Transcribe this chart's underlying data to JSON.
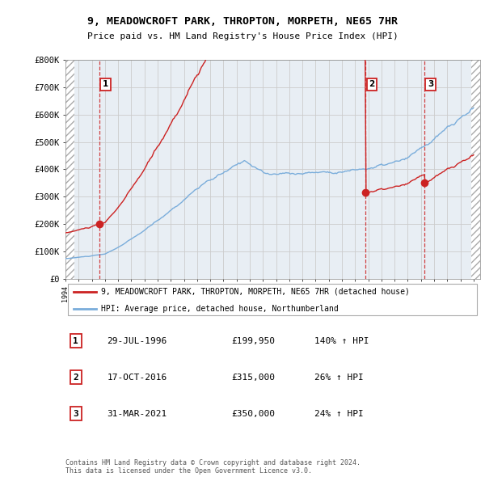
{
  "title_line1": "9, MEADOWCROFT PARK, THROPTON, MORPETH, NE65 7HR",
  "title_line2": "Price paid vs. HM Land Registry's House Price Index (HPI)",
  "ylim": [
    0,
    800000
  ],
  "yticks": [
    0,
    100000,
    200000,
    300000,
    400000,
    500000,
    600000,
    700000,
    800000
  ],
  "ytick_labels": [
    "£0",
    "£100K",
    "£200K",
    "£300K",
    "£400K",
    "£500K",
    "£600K",
    "£700K",
    "£800K"
  ],
  "hpi_color": "#7aaddb",
  "price_color": "#cc2222",
  "vline_color": "#cc2222",
  "purchases": [
    {
      "year_float": 1996.57,
      "price": 199950,
      "label": "1"
    },
    {
      "year_float": 2016.79,
      "price": 315000,
      "label": "2"
    },
    {
      "year_float": 2021.25,
      "price": 350000,
      "label": "3"
    }
  ],
  "legend_entries": [
    {
      "label": "9, MEADOWCROFT PARK, THROPTON, MORPETH, NE65 7HR (detached house)",
      "color": "#cc2222"
    },
    {
      "label": "HPI: Average price, detached house, Northumberland",
      "color": "#7aaddb"
    }
  ],
  "table_rows": [
    {
      "num": "1",
      "date": "29-JUL-1996",
      "price": "£199,950",
      "hpi": "140% ↑ HPI"
    },
    {
      "num": "2",
      "date": "17-OCT-2016",
      "price": "£315,000",
      "hpi": "26% ↑ HPI"
    },
    {
      "num": "3",
      "date": "31-MAR-2021",
      "price": "£350,000",
      "hpi": "24% ↑ HPI"
    }
  ],
  "footnote": "Contains HM Land Registry data © Crown copyright and database right 2024.\nThis data is licensed under the Open Government Licence v3.0.",
  "grid_color": "#cccccc",
  "background_color": "#ffffff",
  "plot_bg_color": "#e8eef4"
}
